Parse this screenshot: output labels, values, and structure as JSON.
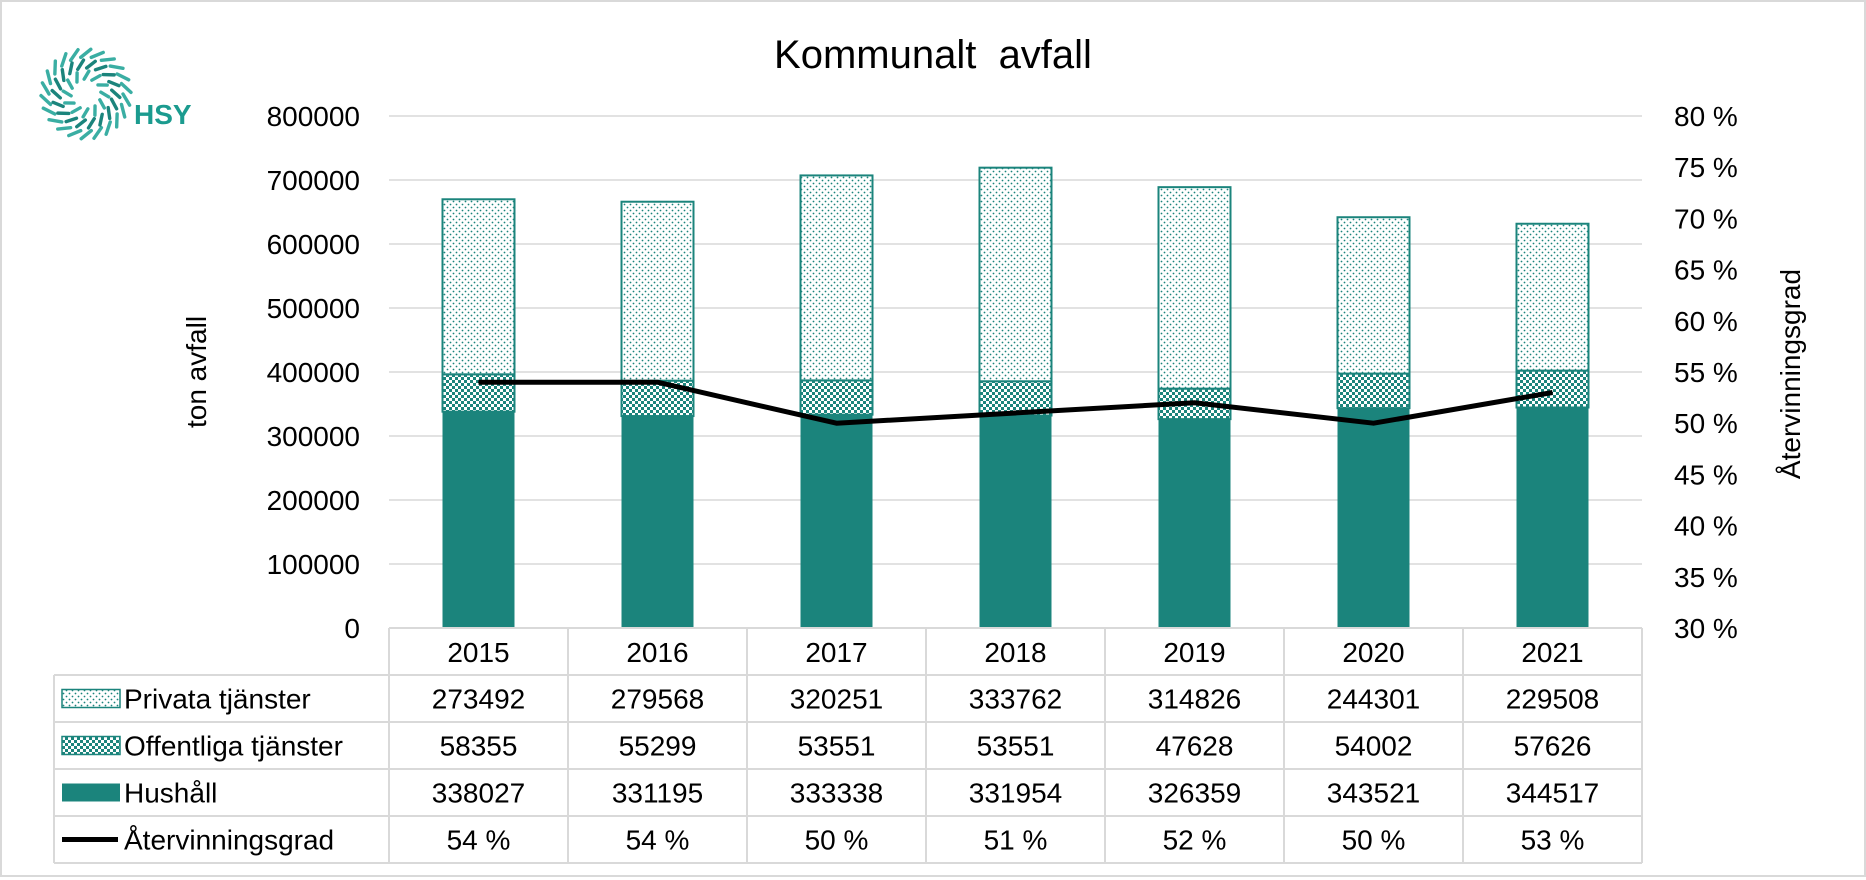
{
  "logo": {
    "text": "HSY"
  },
  "colors": {
    "teal": "#1b847c",
    "line": "#000000",
    "grid": "#d9d9d9",
    "table_border": "#d9d9d9"
  },
  "chart_data": {
    "type": "bar",
    "stacked": true,
    "title": "Kommunalt  avfall",
    "ylabel": "ton avfall",
    "y2label": "Återvinningsgrad",
    "ylim": [
      0,
      800000
    ],
    "yticks": [
      "0",
      "100000",
      "200000",
      "300000",
      "400000",
      "500000",
      "600000",
      "700000",
      "800000"
    ],
    "y2lim": [
      30,
      80
    ],
    "y2ticks": [
      "30 %",
      "35 %",
      "40 %",
      "45 %",
      "50 %",
      "55 %",
      "60 %",
      "65 %",
      "70 %",
      "75 %",
      "80 %"
    ],
    "grid": true,
    "legend": "data-table",
    "categories": [
      "2015",
      "2016",
      "2017",
      "2018",
      "2019",
      "2020",
      "2021"
    ],
    "series": [
      {
        "name": "Hushåll",
        "kind": "bar",
        "pattern": "solid",
        "values": [
          338027,
          331195,
          333338,
          331954,
          326359,
          343521,
          344517
        ],
        "labels": [
          "338027",
          "331195",
          "333338",
          "331954",
          "326359",
          "343521",
          "344517"
        ]
      },
      {
        "name": "Offentliga tjänster",
        "kind": "bar",
        "pattern": "checker",
        "values": [
          58355,
          55299,
          53551,
          53551,
          47628,
          54002,
          57626
        ],
        "labels": [
          "58355",
          "55299",
          "53551",
          "53551",
          "47628",
          "54002",
          "57626"
        ]
      },
      {
        "name": "Privata tjänster",
        "kind": "bar",
        "pattern": "dots",
        "values": [
          273492,
          279568,
          320251,
          333762,
          314826,
          244301,
          229508
        ],
        "labels": [
          "273492",
          "279568",
          "320251",
          "333762",
          "314826",
          "244301",
          "229508"
        ]
      },
      {
        "name": "Återvinningsgrad",
        "kind": "line",
        "axis": "right",
        "values": [
          54,
          54,
          50,
          51,
          52,
          50,
          53
        ],
        "labels": [
          "54 %",
          "54 %",
          "50 %",
          "51 %",
          "52 %",
          "50 %",
          "53 %"
        ]
      }
    ],
    "table_row_order": [
      2,
      1,
      0,
      3
    ]
  }
}
